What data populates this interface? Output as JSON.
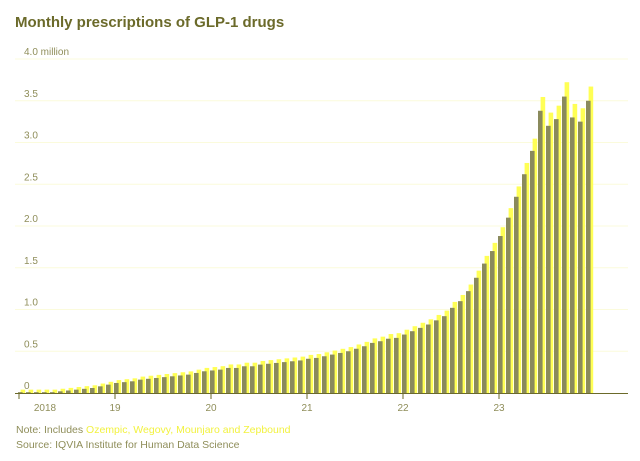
{
  "title": "Monthly prescriptions of GLP-1 drugs",
  "note": {
    "prefix": "Note: Includes ",
    "highlight": "Ozempic, Wegovy, Mounjaro and Zepbound"
  },
  "source": "Source: IQVIA Institute for Human Data Science",
  "colors": {
    "title": "#6b6a2a",
    "text": "#8f8e5a",
    "bar_front": "#8a8a5c",
    "bar_back": "#ffff55",
    "highlight": "#f2f240",
    "grid": "#fbfbdc",
    "axis": "#6b6a2a"
  },
  "chart_data": {
    "type": "bar",
    "title": "Monthly prescriptions of GLP-1 drugs",
    "ylabel": "",
    "xlabel": "",
    "unit": "million",
    "ylim": [
      0,
      4.0
    ],
    "yticks": [
      {
        "value": 0,
        "label": "0"
      },
      {
        "value": 0.5,
        "label": "0.5"
      },
      {
        "value": 1.0,
        "label": "1.0"
      },
      {
        "value": 1.5,
        "label": "1.5"
      },
      {
        "value": 2.0,
        "label": "2.0"
      },
      {
        "value": 2.5,
        "label": "2.5"
      },
      {
        "value": 3.0,
        "label": "3.0"
      },
      {
        "value": 3.5,
        "label": "3.5"
      },
      {
        "value": 4.0,
        "label": "4.0 million"
      }
    ],
    "xticks": [
      {
        "index": 0,
        "label": "2018"
      },
      {
        "index": 12,
        "label": "19"
      },
      {
        "index": 24,
        "label": "20"
      },
      {
        "index": 36,
        "label": "21"
      },
      {
        "index": 48,
        "label": "22"
      },
      {
        "index": 60,
        "label": "23"
      }
    ],
    "categories": [
      "2018-01",
      "2018-02",
      "2018-03",
      "2018-04",
      "2018-05",
      "2018-06",
      "2018-07",
      "2018-08",
      "2018-09",
      "2018-10",
      "2018-11",
      "2018-12",
      "2019-01",
      "2019-02",
      "2019-03",
      "2019-04",
      "2019-05",
      "2019-06",
      "2019-07",
      "2019-08",
      "2019-09",
      "2019-10",
      "2019-11",
      "2019-12",
      "2020-01",
      "2020-02",
      "2020-03",
      "2020-04",
      "2020-05",
      "2020-06",
      "2020-07",
      "2020-08",
      "2020-09",
      "2020-10",
      "2020-11",
      "2020-12",
      "2021-01",
      "2021-02",
      "2021-03",
      "2021-04",
      "2021-05",
      "2021-06",
      "2021-07",
      "2021-08",
      "2021-09",
      "2021-10",
      "2021-11",
      "2021-12",
      "2022-01",
      "2022-02",
      "2022-03",
      "2022-04",
      "2022-05",
      "2022-06",
      "2022-07",
      "2022-08",
      "2022-09",
      "2022-10",
      "2022-11",
      "2022-12",
      "2023-01",
      "2023-02",
      "2023-03",
      "2023-04",
      "2023-05",
      "2023-06",
      "2023-07",
      "2023-08",
      "2023-09",
      "2023-10",
      "2023-11",
      "2023-12"
    ],
    "values": [
      0.01,
      0.01,
      0.01,
      0.01,
      0.01,
      0.02,
      0.03,
      0.04,
      0.05,
      0.06,
      0.08,
      0.1,
      0.12,
      0.13,
      0.14,
      0.16,
      0.17,
      0.18,
      0.19,
      0.2,
      0.21,
      0.22,
      0.24,
      0.26,
      0.27,
      0.28,
      0.3,
      0.3,
      0.32,
      0.32,
      0.34,
      0.35,
      0.36,
      0.37,
      0.38,
      0.39,
      0.41,
      0.42,
      0.44,
      0.46,
      0.48,
      0.5,
      0.53,
      0.56,
      0.6,
      0.62,
      0.65,
      0.66,
      0.7,
      0.74,
      0.78,
      0.82,
      0.87,
      0.92,
      1.02,
      1.1,
      1.22,
      1.38,
      1.55,
      1.7,
      1.88,
      2.1,
      2.35,
      2.62,
      2.9,
      3.38,
      3.2,
      3.28,
      3.55,
      3.3,
      3.25,
      3.5
    ]
  }
}
